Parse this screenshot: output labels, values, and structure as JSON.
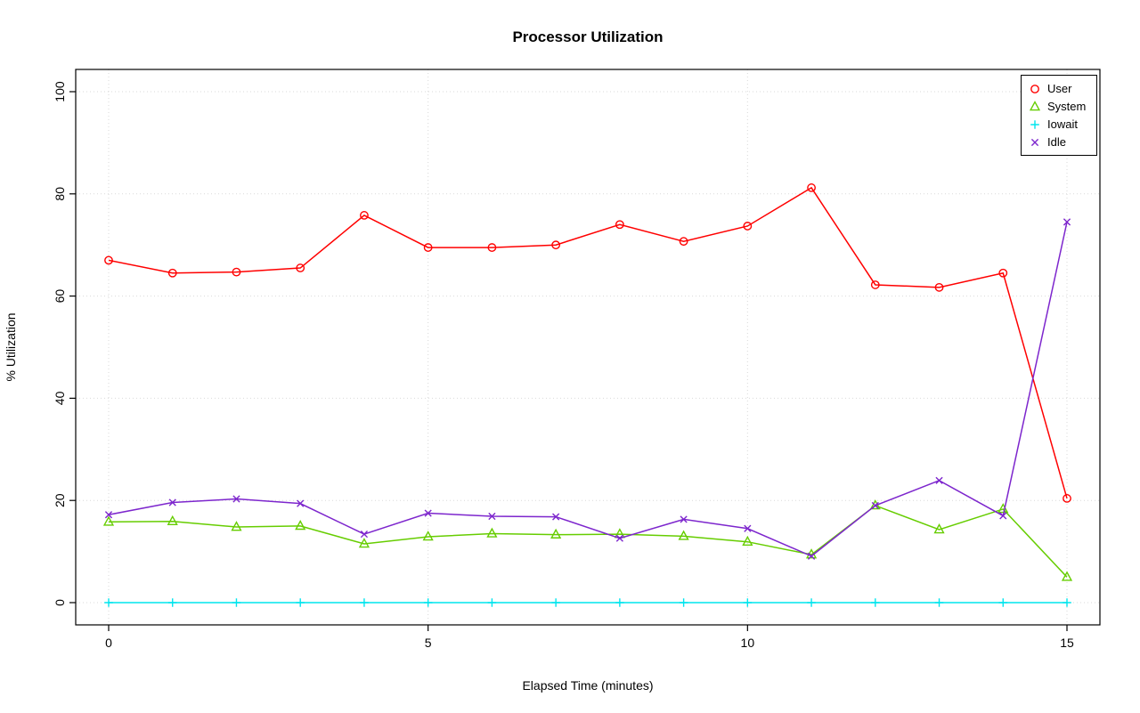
{
  "title": "Processor Utilization",
  "chart_data": {
    "type": "line",
    "title": "Processor Utilization",
    "xlabel": "Elapsed Time (minutes)",
    "ylabel": "% Utilization",
    "x": [
      0,
      1,
      2,
      3,
      4,
      5,
      6,
      7,
      8,
      9,
      10,
      11,
      12,
      13,
      14,
      15
    ],
    "xlim": [
      0,
      15
    ],
    "ylim": [
      0,
      100
    ],
    "xticks": [
      0,
      5,
      10,
      15
    ],
    "yticks": [
      0,
      20,
      40,
      60,
      80,
      100
    ],
    "grid": true,
    "grid_style": "dotted",
    "grid_color": "#d9d9d9",
    "legend_position": "top-right",
    "series": [
      {
        "name": "User",
        "color": "#ff0000",
        "marker": "circle",
        "values": [
          67.0,
          64.5,
          64.7,
          65.5,
          75.8,
          69.5,
          69.5,
          70.0,
          74.0,
          70.7,
          73.7,
          81.2,
          62.2,
          61.7,
          64.5,
          20.4
        ]
      },
      {
        "name": "System",
        "color": "#66cd00",
        "marker": "triangle",
        "values": [
          15.8,
          15.9,
          14.8,
          15.0,
          11.5,
          12.9,
          13.5,
          13.3,
          13.4,
          13.0,
          11.9,
          9.4,
          19.0,
          14.3,
          18.3,
          5.0
        ]
      },
      {
        "name": "Iowait",
        "color": "#00e5ee",
        "marker": "plus",
        "values": [
          0,
          0,
          0,
          0,
          0,
          0,
          0,
          0,
          0,
          0,
          0,
          0,
          0,
          0,
          0,
          0
        ]
      },
      {
        "name": "Idle",
        "color": "#7d26cd",
        "marker": "x",
        "values": [
          17.2,
          19.6,
          20.3,
          19.4,
          13.4,
          17.5,
          16.9,
          16.8,
          12.6,
          16.3,
          14.5,
          9.1,
          19.0,
          23.9,
          17.0,
          74.5
        ]
      }
    ]
  }
}
